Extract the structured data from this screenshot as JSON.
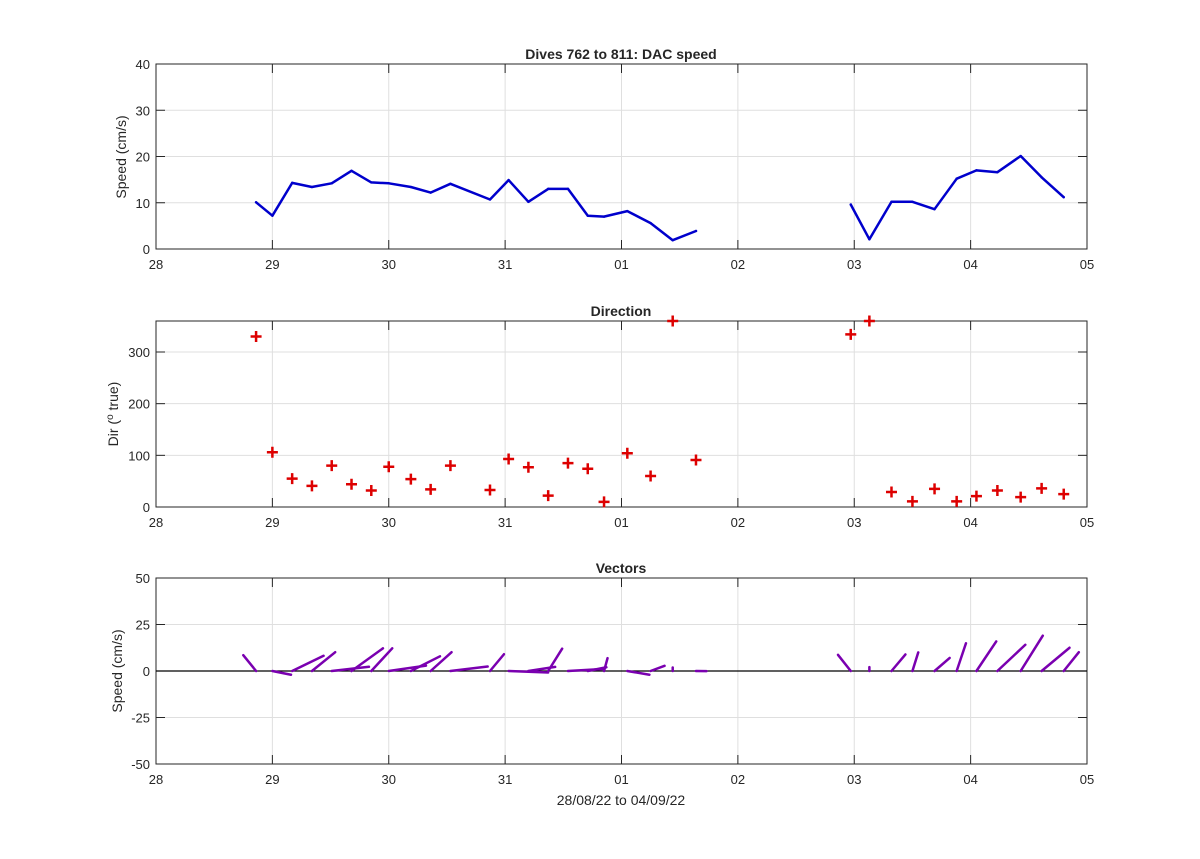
{
  "figure": {
    "xlabel": "28/08/22 to 04/09/22"
  },
  "chart_data": [
    {
      "type": "line",
      "title": "Dives 762 to 811: DAC speed",
      "xlabel": "",
      "ylabel": "Speed (cm/s)",
      "xlim": [
        0,
        8
      ],
      "ylim": [
        0,
        40
      ],
      "x_ticks": [
        0,
        1,
        2,
        3,
        4,
        5,
        6,
        7,
        8
      ],
      "x_ticklabels": [
        "28",
        "29",
        "30",
        "31",
        "01",
        "02",
        "03",
        "04",
        "05"
      ],
      "y_ticks": [
        0,
        10,
        20,
        30,
        40
      ],
      "y_ticklabels": [
        "0",
        "10",
        "20",
        "30",
        "40"
      ],
      "grid": true,
      "color": "#0000cc",
      "series": [
        {
          "segments": [
            [
              [
                0.86,
                10.1
              ],
              [
                1.0,
                7.2
              ],
              [
                1.17,
                14.3
              ],
              [
                1.34,
                13.4
              ],
              [
                1.51,
                14.2
              ],
              [
                1.68,
                16.9
              ],
              [
                1.85,
                14.4
              ],
              [
                2.0,
                14.2
              ],
              [
                2.19,
                13.4
              ],
              [
                2.36,
                12.2
              ],
              [
                2.53,
                14.1
              ],
              [
                2.87,
                10.7
              ],
              [
                3.03,
                14.9
              ],
              [
                3.2,
                10.2
              ],
              [
                3.37,
                13.0
              ],
              [
                3.54,
                13.0
              ],
              [
                3.71,
                7.2
              ],
              [
                3.85,
                7.0
              ],
              [
                4.05,
                8.2
              ],
              [
                4.25,
                5.6
              ],
              [
                4.44,
                1.9
              ],
              [
                4.64,
                3.9
              ]
            ],
            [
              [
                5.97,
                9.6
              ],
              [
                6.13,
                2.1
              ],
              [
                6.32,
                10.2
              ],
              [
                6.5,
                10.2
              ],
              [
                6.69,
                8.6
              ],
              [
                6.88,
                15.2
              ],
              [
                7.05,
                17.0
              ],
              [
                7.23,
                16.6
              ],
              [
                7.43,
                20.1
              ],
              [
                7.61,
                15.5
              ],
              [
                7.8,
                11.2
              ]
            ]
          ]
        }
      ]
    },
    {
      "type": "scatter",
      "title": "Direction",
      "xlabel": "",
      "ylabel": "Dir (",
      "ylabel_sup": "o",
      "ylabel_end": " true)",
      "xlim": [
        0,
        8
      ],
      "ylim": [
        0,
        360
      ],
      "x_ticks": [
        0,
        1,
        2,
        3,
        4,
        5,
        6,
        7,
        8
      ],
      "x_ticklabels": [
        "28",
        "29",
        "30",
        "31",
        "01",
        "02",
        "03",
        "04",
        "05"
      ],
      "y_ticks": [
        0,
        100,
        200,
        300
      ],
      "y_ticklabels": [
        "0",
        "100",
        "200",
        "300"
      ],
      "grid": true,
      "marker": "+",
      "color": "#dd0000",
      "points": [
        [
          0.86,
          330
        ],
        [
          1.0,
          106
        ],
        [
          1.17,
          55
        ],
        [
          1.34,
          41
        ],
        [
          1.51,
          80
        ],
        [
          1.68,
          44
        ],
        [
          1.85,
          32
        ],
        [
          2.0,
          78
        ],
        [
          2.19,
          54
        ],
        [
          2.36,
          34
        ],
        [
          2.53,
          80
        ],
        [
          2.87,
          33
        ],
        [
          3.03,
          93
        ],
        [
          3.2,
          77
        ],
        [
          3.37,
          22
        ],
        [
          3.54,
          85
        ],
        [
          3.71,
          74
        ],
        [
          3.85,
          10
        ],
        [
          4.05,
          104
        ],
        [
          4.25,
          60
        ],
        [
          4.44,
          360
        ],
        [
          4.64,
          91
        ],
        [
          5.97,
          334
        ],
        [
          6.13,
          360
        ],
        [
          6.32,
          29
        ],
        [
          6.5,
          11
        ],
        [
          6.69,
          35
        ],
        [
          6.88,
          11
        ],
        [
          7.05,
          21
        ],
        [
          7.23,
          32
        ],
        [
          7.43,
          19
        ],
        [
          7.61,
          36
        ],
        [
          7.8,
          25
        ]
      ]
    },
    {
      "type": "vector",
      "title": "Vectors",
      "xlabel": "28/08/22 to 04/09/22",
      "ylabel": "Speed (cm/s)",
      "xlim": [
        0,
        8
      ],
      "ylim": [
        -50,
        50
      ],
      "x_ticks": [
        0,
        1,
        2,
        3,
        4,
        5,
        6,
        7,
        8
      ],
      "x_ticklabels": [
        "28",
        "29",
        "30",
        "31",
        "01",
        "02",
        "03",
        "04",
        "05"
      ],
      "y_ticks": [
        -50,
        -25,
        0,
        25,
        50
      ],
      "y_ticklabels": [
        "-50",
        "-25",
        "0",
        "25",
        "50"
      ],
      "grid": true,
      "color": "#7a00b0",
      "vectors": [
        {
          "x": 0.86,
          "dx": -0.11,
          "dy": 8.5
        },
        {
          "x": 1.0,
          "dx": 0.16,
          "dy": -2.0
        },
        {
          "x": 1.17,
          "dx": 0.27,
          "dy": 8.2
        },
        {
          "x": 1.34,
          "dx": 0.2,
          "dy": 10.1
        },
        {
          "x": 1.51,
          "dx": 0.32,
          "dy": 2.3
        },
        {
          "x": 1.68,
          "dx": 0.27,
          "dy": 12.2
        },
        {
          "x": 1.85,
          "dx": 0.18,
          "dy": 12.2
        },
        {
          "x": 2.0,
          "dx": 0.32,
          "dy": 2.9
        },
        {
          "x": 2.19,
          "dx": 0.25,
          "dy": 7.9
        },
        {
          "x": 2.36,
          "dx": 0.18,
          "dy": 10.1
        },
        {
          "x": 2.53,
          "dx": 0.32,
          "dy": 2.4
        },
        {
          "x": 2.87,
          "dx": 0.12,
          "dy": 9.0
        },
        {
          "x": 3.03,
          "dx": 0.34,
          "dy": -0.8
        },
        {
          "x": 3.2,
          "dx": 0.23,
          "dy": 2.2
        },
        {
          "x": 3.37,
          "dx": 0.12,
          "dy": 12.0
        },
        {
          "x": 3.54,
          "dx": 0.3,
          "dy": 1.1
        },
        {
          "x": 3.71,
          "dx": 0.16,
          "dy": 2.0
        },
        {
          "x": 3.85,
          "dx": 0.03,
          "dy": 6.9
        },
        {
          "x": 4.05,
          "dx": 0.19,
          "dy": -2.0
        },
        {
          "x": 4.25,
          "dx": 0.12,
          "dy": 2.8
        },
        {
          "x": 4.44,
          "dx": 0.0,
          "dy": 1.9
        },
        {
          "x": 4.64,
          "dx": 0.09,
          "dy": -0.1
        },
        {
          "x": 5.97,
          "dx": -0.11,
          "dy": 8.7
        },
        {
          "x": 6.13,
          "dx": 0.0,
          "dy": 2.1
        },
        {
          "x": 6.32,
          "dx": 0.12,
          "dy": 8.9
        },
        {
          "x": 6.5,
          "dx": 0.05,
          "dy": 10.0
        },
        {
          "x": 6.69,
          "dx": 0.13,
          "dy": 7.0
        },
        {
          "x": 6.88,
          "dx": 0.08,
          "dy": 14.9
        },
        {
          "x": 7.05,
          "dx": 0.17,
          "dy": 15.9
        },
        {
          "x": 7.23,
          "dx": 0.24,
          "dy": 14.1
        },
        {
          "x": 7.43,
          "dx": 0.19,
          "dy": 19.0
        },
        {
          "x": 7.61,
          "dx": 0.24,
          "dy": 12.5
        },
        {
          "x": 7.8,
          "dx": 0.13,
          "dy": 10.1
        }
      ]
    }
  ]
}
